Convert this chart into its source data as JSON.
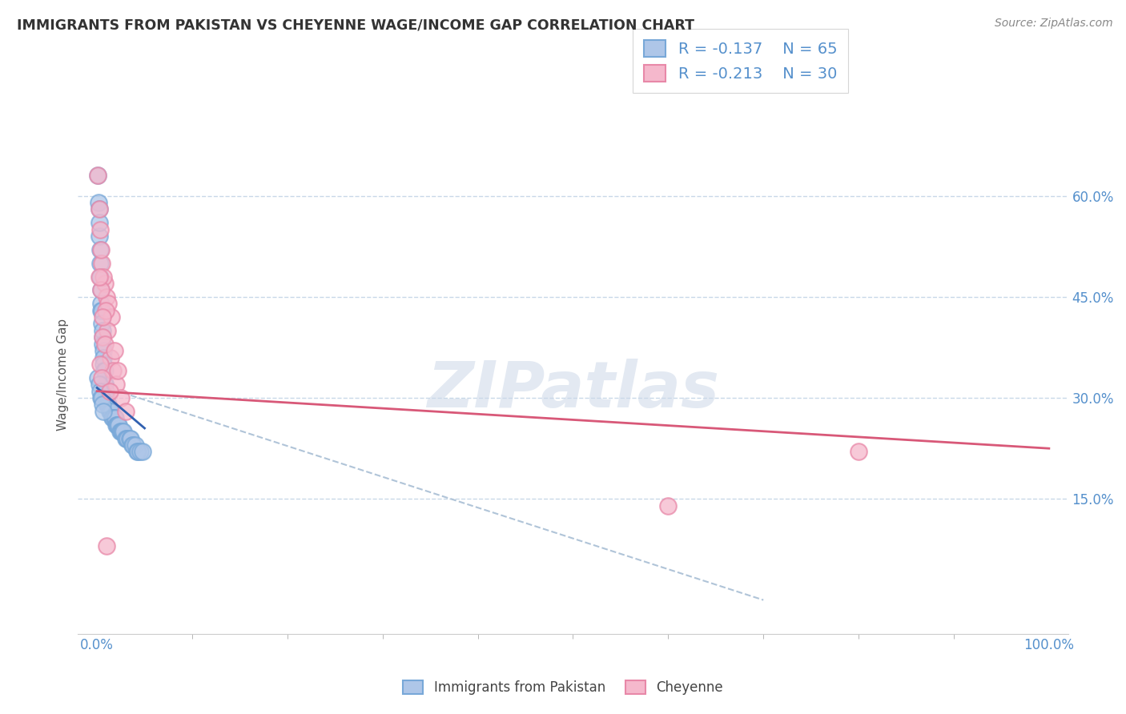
{
  "title": "IMMIGRANTS FROM PAKISTAN VS CHEYENNE WAGE/INCOME GAP CORRELATION CHART",
  "source": "Source: ZipAtlas.com",
  "ylabel": "Wage/Income Gap",
  "xlim": [
    -2,
    102
  ],
  "ylim": [
    -5,
    72
  ],
  "yticks": [
    15,
    30,
    45,
    60
  ],
  "xticks": [
    0,
    100
  ],
  "xtick_labels": [
    "0.0%",
    "100.0%"
  ],
  "ytick_labels": [
    "15.0%",
    "30.0%",
    "45.0%",
    "60.0%"
  ],
  "blue_color": "#aec6e8",
  "pink_color": "#f5b8cc",
  "blue_edge": "#78a8d8",
  "pink_edge": "#e888a8",
  "trend_blue": "#3060b0",
  "trend_pink": "#d85878",
  "trend_gray": "#b0c4d8",
  "r_blue": -0.137,
  "n_blue": 65,
  "r_pink": -0.213,
  "n_pink": 30,
  "watermark_text": "ZIPatlas",
  "legend_label_blue": "Immigrants from Pakistan",
  "legend_label_pink": "Cheyenne",
  "blue_scatter_x": [
    0.1,
    0.15,
    0.2,
    0.2,
    0.25,
    0.3,
    0.3,
    0.35,
    0.4,
    0.4,
    0.45,
    0.5,
    0.5,
    0.55,
    0.6,
    0.6,
    0.65,
    0.7,
    0.7,
    0.75,
    0.8,
    0.8,
    0.85,
    0.9,
    0.9,
    0.95,
    1.0,
    1.0,
    1.1,
    1.2,
    1.3,
    1.4,
    1.5,
    1.6,
    1.7,
    1.8,
    1.9,
    2.0,
    2.1,
    2.2,
    2.3,
    2.4,
    2.5,
    2.6,
    2.7,
    2.8,
    3.0,
    3.1,
    3.2,
    3.4,
    3.5,
    3.7,
    3.8,
    4.0,
    4.2,
    4.3,
    4.5,
    4.8,
    0.1,
    0.2,
    0.3,
    0.4,
    0.5,
    0.6,
    0.7
  ],
  "blue_scatter_y": [
    63,
    59,
    58,
    54,
    56,
    52,
    50,
    48,
    46,
    44,
    43,
    43,
    41,
    39,
    40,
    38,
    37,
    36,
    35,
    34,
    34,
    32,
    32,
    31,
    30,
    30,
    30,
    29,
    29,
    29,
    28,
    28,
    28,
    27,
    27,
    27,
    27,
    26,
    26,
    26,
    26,
    25,
    25,
    25,
    25,
    25,
    24,
    24,
    24,
    24,
    24,
    23,
    23,
    23,
    22,
    22,
    22,
    22,
    33,
    32,
    31,
    30,
    30,
    29,
    28
  ],
  "pink_scatter_x": [
    0.1,
    0.3,
    0.5,
    0.8,
    1.0,
    1.2,
    1.5,
    0.2,
    0.4,
    0.7,
    0.9,
    1.1,
    1.4,
    1.7,
    2.0,
    2.5,
    3.0,
    0.6,
    0.3,
    0.5,
    1.3,
    60.0,
    80.0,
    0.8,
    0.4,
    0.2,
    1.8,
    2.2,
    0.6,
    1.0
  ],
  "pink_scatter_y": [
    63,
    55,
    50,
    47,
    45,
    44,
    42,
    58,
    52,
    48,
    43,
    40,
    36,
    34,
    32,
    30,
    28,
    39,
    35,
    33,
    31,
    14,
    22,
    38,
    46,
    48,
    37,
    34,
    42,
    8
  ],
  "blue_trend_x": [
    0.0,
    5.0
  ],
  "blue_trend_y": [
    31.5,
    25.5
  ],
  "pink_trend_x": [
    0.0,
    100.0
  ],
  "pink_trend_y": [
    31.0,
    22.5
  ],
  "gray_trend_x": [
    0.0,
    70.0
  ],
  "gray_trend_y": [
    32.0,
    0.0
  ]
}
